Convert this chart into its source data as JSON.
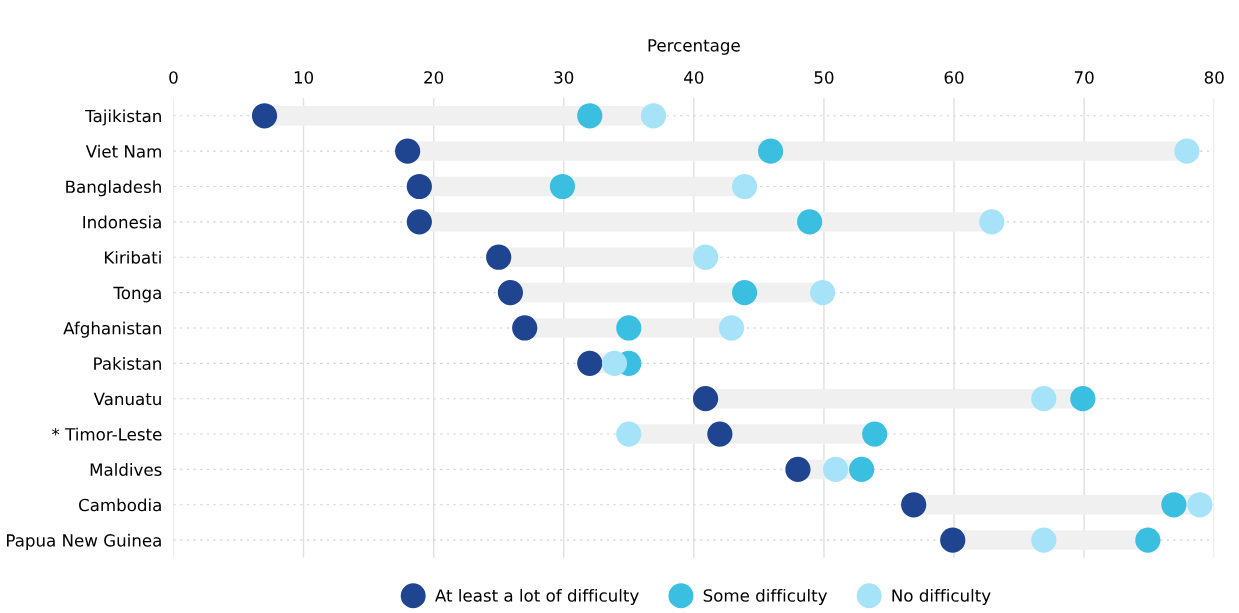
{
  "chart_data": {
    "type": "scatter",
    "orientation": "horizontal",
    "xlabel": "Percentage",
    "categories": [
      "Tajikistan",
      "Viet Nam",
      "Bangladesh",
      "Indonesia",
      "Kiribati",
      "Tonga",
      "Afghanistan",
      "Pakistan",
      "Vanuatu",
      "* Timor-Leste",
      "Maldives",
      "Cambodia",
      "Papua New Guinea"
    ],
    "series": [
      {
        "name": "At least a lot of difficulty",
        "color": "#1f4591",
        "values": [
          7.0,
          18.0,
          18.9,
          18.9,
          25.0,
          25.9,
          27.0,
          32.0,
          40.9,
          42.0,
          48.0,
          56.9,
          59.9
        ]
      },
      {
        "name": "Some difficulty",
        "color": "#3bbfe0",
        "values": [
          32.0,
          45.9,
          29.9,
          48.9,
          null,
          43.9,
          35.0,
          35.0,
          69.9,
          53.9,
          52.9,
          76.9,
          74.9
        ]
      },
      {
        "name": "No difficulty",
        "color": "#a6e3f8",
        "values": [
          36.9,
          77.9,
          43.9,
          62.9,
          40.9,
          49.9,
          42.9,
          33.9,
          66.9,
          35.0,
          50.9,
          78.9,
          66.9
        ]
      }
    ],
    "xlim": [
      0,
      80
    ],
    "xticks": [
      0,
      10,
      20,
      30,
      40,
      50,
      60,
      70,
      80
    ],
    "grid": true,
    "legend": "bottom",
    "marker": "circle"
  }
}
